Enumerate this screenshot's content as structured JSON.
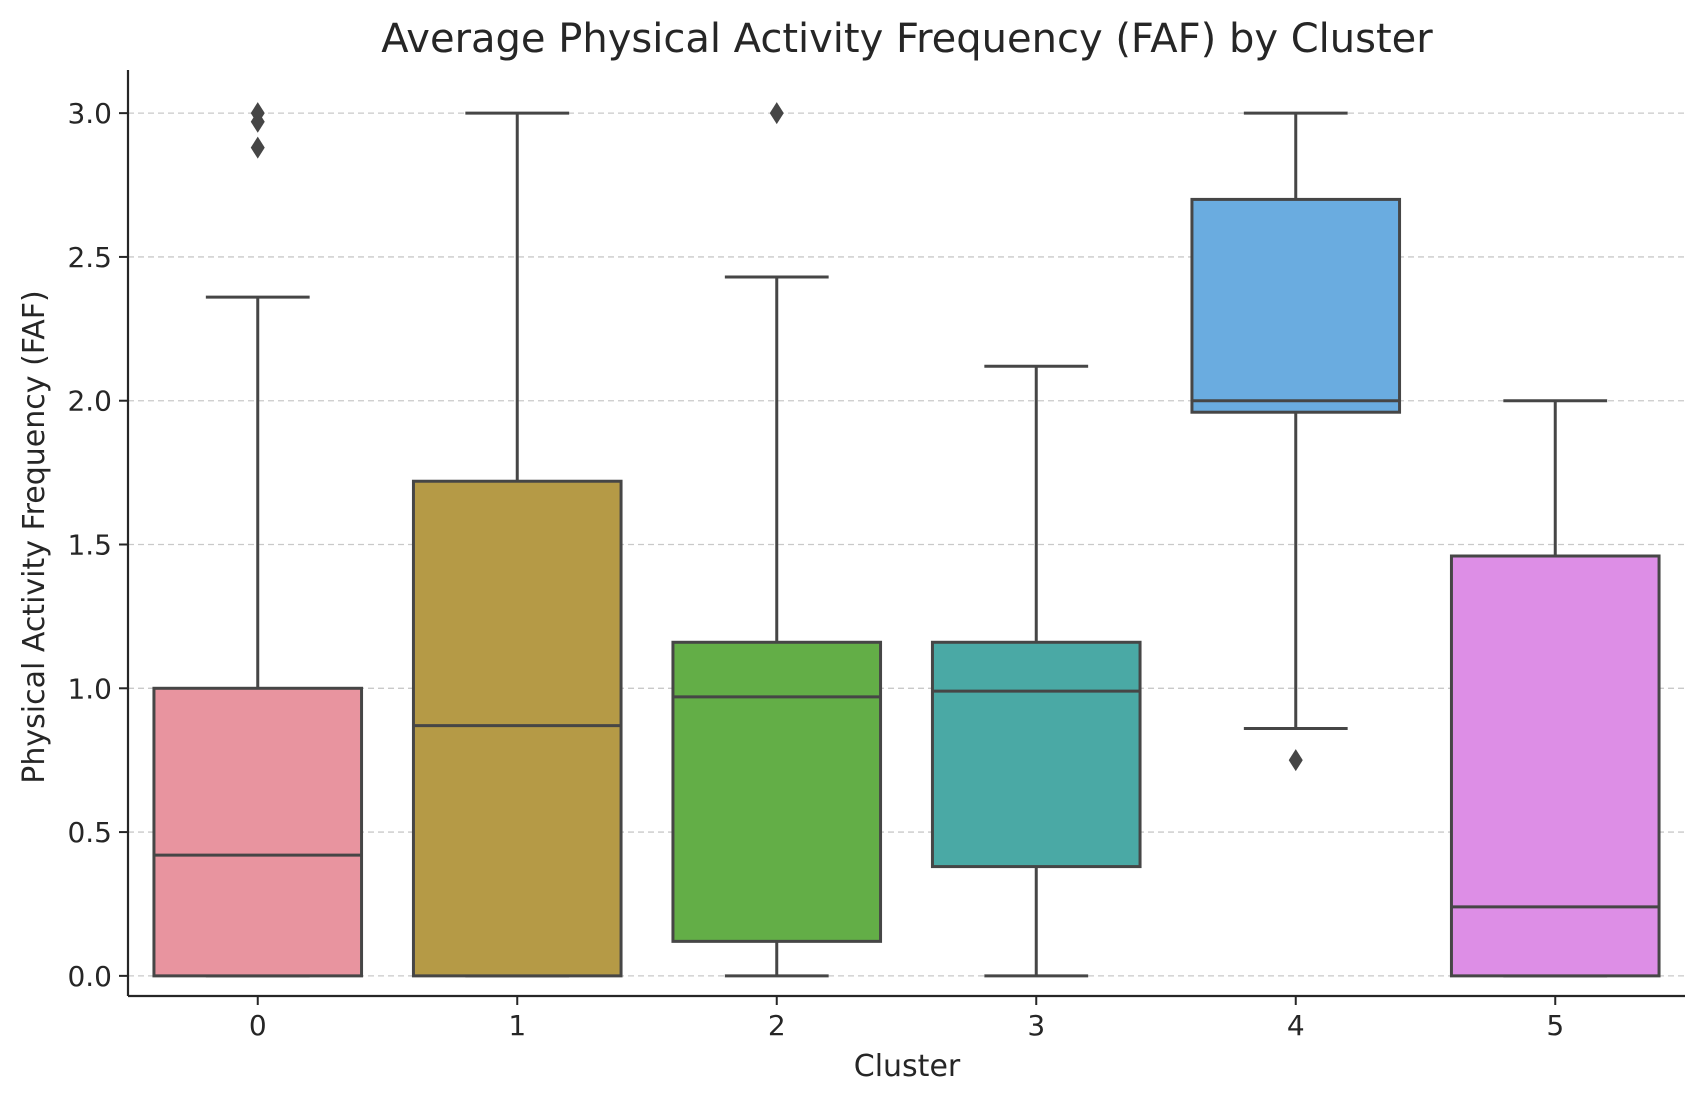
{
  "chart_data": {
    "type": "box",
    "title": "Average Physical Activity Frequency (FAF) by Cluster",
    "xlabel": "Cluster",
    "ylabel": "Physical Activity Frequency (FAF)",
    "ylim": [
      -0.07,
      3.15
    ],
    "yticks": [
      0.0,
      0.5,
      1.0,
      1.5,
      2.0,
      2.5,
      3.0
    ],
    "ytick_labels": [
      "0.0",
      "0.5",
      "1.0",
      "1.5",
      "2.0",
      "2.5",
      "3.0"
    ],
    "grid": "horizontal-dashed",
    "categories": [
      "0",
      "1",
      "2",
      "3",
      "4",
      "5"
    ],
    "boxes": [
      {
        "category": "0",
        "whisker_low": 0.0,
        "q1": 0.0,
        "median": 0.42,
        "q3": 1.0,
        "whisker_high": 2.36,
        "outliers": [
          2.88,
          2.97,
          3.0
        ],
        "color": "#e8949f"
      },
      {
        "category": "1",
        "whisker_low": 0.0,
        "q1": 0.0,
        "median": 0.87,
        "q3": 1.72,
        "whisker_high": 3.0,
        "outliers": [],
        "color": "#b59a46"
      },
      {
        "category": "2",
        "whisker_low": 0.0,
        "q1": 0.12,
        "median": 0.97,
        "q3": 1.16,
        "whisker_high": 2.43,
        "outliers": [
          3.0
        ],
        "color": "#63ae47"
      },
      {
        "category": "3",
        "whisker_low": 0.0,
        "q1": 0.38,
        "median": 0.99,
        "q3": 1.16,
        "whisker_high": 2.12,
        "outliers": [],
        "color": "#4aa9a5"
      },
      {
        "category": "4",
        "whisker_low": 0.86,
        "q1": 1.96,
        "median": 2.0,
        "q3": 2.7,
        "whisker_high": 3.0,
        "outliers": [
          0.75
        ],
        "color": "#6aace0"
      },
      {
        "category": "5",
        "whisker_low": 0.0,
        "q1": 0.0,
        "median": 0.24,
        "q3": 1.46,
        "whisker_high": 2.0,
        "outliers": [],
        "color": "#dd8ee6"
      }
    ]
  }
}
